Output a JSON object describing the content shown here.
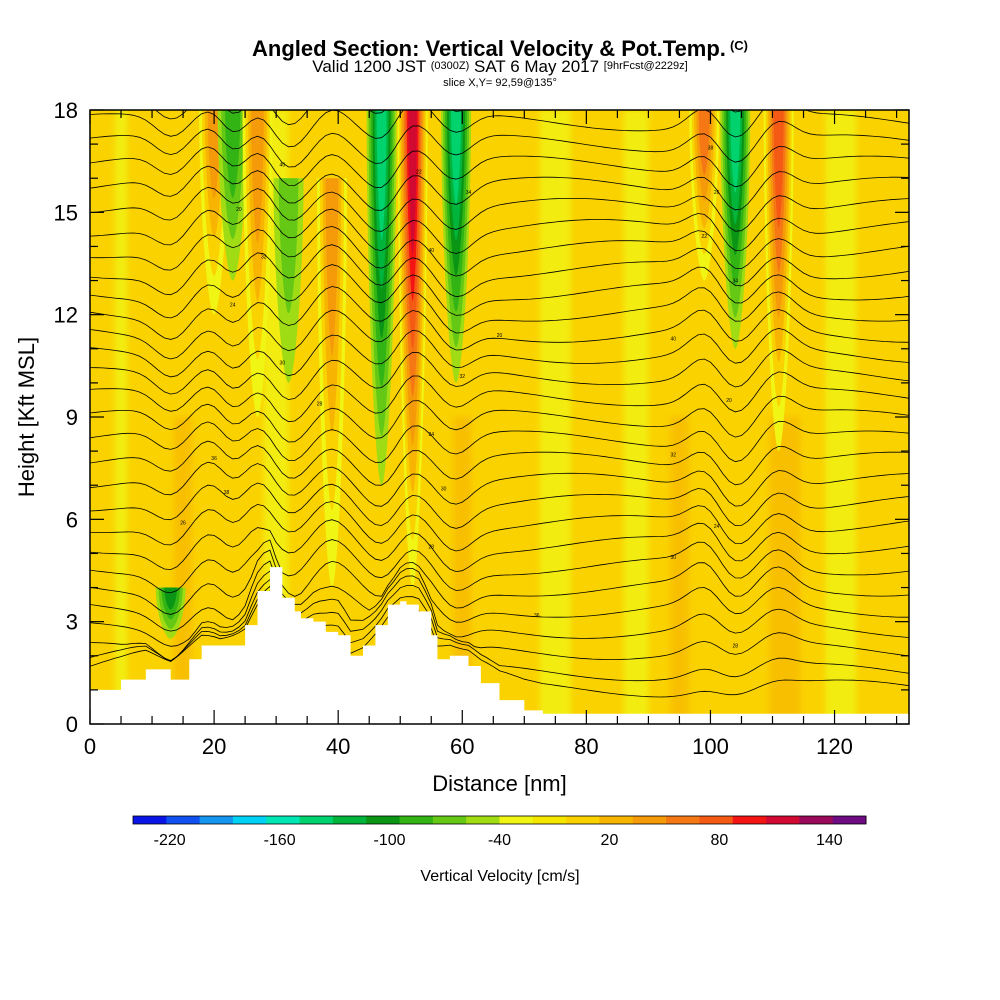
{
  "title": {
    "main": "Angled Section: Vertical Velocity & Pot.Temp.",
    "copyright": "(C)",
    "valid_a": "Valid 1200 JST",
    "valid_z": "(0300Z)",
    "valid_b": "SAT 6 May 2017",
    "fcst": "[9hrFcst@2229z]",
    "slice": "slice X,Y= 92,59@135°"
  },
  "chart_data": {
    "type": "heatmap",
    "xlabel": "Distance [nm]",
    "ylabel": "Height [Kft MSL]",
    "xlim": [
      0,
      132
    ],
    "ylim": [
      0,
      18
    ],
    "x_ticks": [
      "0",
      "20",
      "40",
      "60",
      "80",
      "100",
      "120"
    ],
    "y_ticks": [
      "0",
      "3",
      "6",
      "9",
      "12",
      "15",
      "18"
    ],
    "colorbar": {
      "title": "Vertical Velocity [cm/s]",
      "tick_labels": [
        "-220",
        "-160",
        "-100",
        "-40",
        "20",
        "80",
        "140"
      ],
      "tick_values": [
        -220,
        -160,
        -100,
        -40,
        20,
        80,
        140
      ],
      "range": [
        -240,
        160
      ],
      "step": 20,
      "colors": [
        "#0a14e6",
        "#1050f0",
        "#1496f0",
        "#00d2f5",
        "#00e6b4",
        "#00d26e",
        "#00b43c",
        "#0a9614",
        "#32b414",
        "#64c814",
        "#a0dc14",
        "#f0f514",
        "#f5e600",
        "#fad200",
        "#f7b400",
        "#f59b0a",
        "#f57814",
        "#f55a14",
        "#f51414",
        "#d20a32",
        "#9b0a5a",
        "#6e0a82"
      ],
      "bins": [
        "-240 to -220",
        "-220 to -200",
        "-200 to -180",
        "-180 to -160",
        "-160 to -140",
        "-140 to -120",
        "-120 to -100",
        "-100 to -80",
        "-80 to -60",
        "-60 to -40",
        "-40 to -20",
        "-20 to 0",
        "0 to 20",
        "20 to 40",
        "40 to 60",
        "60 to 80",
        "80 to 100",
        "100 to 120",
        "120 to 140",
        "140 to 160"
      ]
    },
    "vertical_velocity_features": [
      {
        "kind": "updraft",
        "x": 20,
        "zmin": 12,
        "zmax": 18,
        "value": 60
      },
      {
        "kind": "downdraft",
        "x": 23,
        "zmin": 13,
        "zmax": 18,
        "value": -60
      },
      {
        "kind": "updraft",
        "x": 27,
        "zmin": 9,
        "zmax": 18,
        "value": 60
      },
      {
        "kind": "downdraft",
        "x": 32,
        "zmin": 10,
        "zmax": 16,
        "value": -40
      },
      {
        "kind": "updraft",
        "x": 39,
        "zmin": 4,
        "zmax": 16,
        "value": 60
      },
      {
        "kind": "downdraft",
        "x": 47,
        "zmin": 7,
        "zmax": 18,
        "value": -120
      },
      {
        "kind": "updraft",
        "x": 52,
        "zmin": 4,
        "zmax": 18,
        "value": 140
      },
      {
        "kind": "downdraft",
        "x": 59,
        "zmin": 10,
        "zmax": 18,
        "value": -120
      },
      {
        "kind": "updraft",
        "x": 99,
        "zmin": 13,
        "zmax": 18,
        "value": 80
      },
      {
        "kind": "downdraft",
        "x": 104,
        "zmin": 11,
        "zmax": 18,
        "value": -120
      },
      {
        "kind": "updraft",
        "x": 111,
        "zmin": 8,
        "zmax": 18,
        "value": 100
      },
      {
        "kind": "downdraft",
        "x": 13,
        "zmin": 2.5,
        "zmax": 4,
        "value": -80
      }
    ],
    "terrain_profile": {
      "x": [
        0,
        5,
        9,
        13,
        16,
        18,
        21,
        25,
        27,
        29,
        31,
        33,
        34,
        36,
        38,
        40,
        42,
        44,
        46,
        48,
        50,
        51,
        53,
        55,
        56,
        58,
        61,
        63,
        66,
        70,
        73,
        78,
        132
      ],
      "z": [
        1.0,
        1.3,
        1.6,
        1.3,
        1.9,
        2.3,
        2.3,
        2.9,
        3.9,
        4.6,
        3.7,
        3.3,
        3.1,
        3.0,
        2.7,
        2.6,
        2.0,
        2.3,
        2.9,
        3.5,
        3.6,
        3.5,
        3.3,
        2.6,
        1.9,
        2.0,
        1.7,
        1.2,
        0.7,
        0.4,
        0.3,
        0.3,
        0.3
      ]
    },
    "pot_temp_contours": {
      "interval": 2,
      "labels_shown": [
        "40",
        "20",
        "32",
        "24",
        "30",
        "28",
        "36",
        "38",
        "26",
        "22",
        "34"
      ]
    }
  }
}
